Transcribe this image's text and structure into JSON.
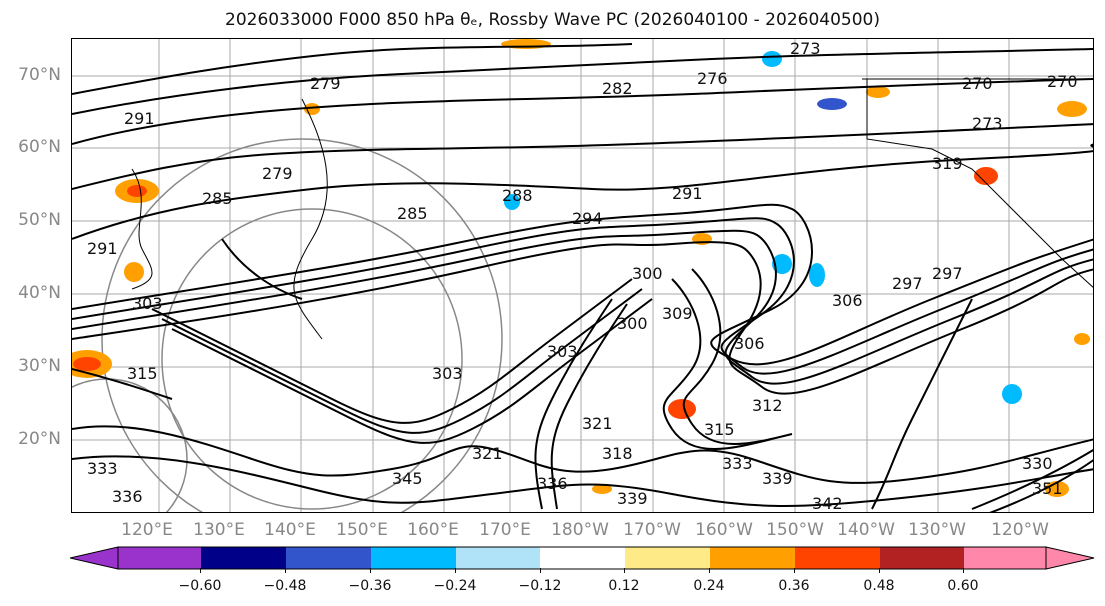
{
  "title": "2026033000 F000 850 hPa θₑ, Rossby Wave PC (2026040100 - 2026040500)",
  "lat_labels": [
    "70°N",
    "60°N",
    "50°N",
    "40°N",
    "30°N",
    "20°N"
  ],
  "lon_labels": [
    "120°E",
    "130°E",
    "140°E",
    "150°E",
    "160°E",
    "170°E",
    "180°W",
    "170°W",
    "160°W",
    "150°W",
    "140°W",
    "130°W",
    "120°W"
  ],
  "colorbar": {
    "tick_labels": [
      "−0.60",
      "−0.48",
      "−0.36",
      "−0.24",
      "−0.12",
      "0.12",
      "0.24",
      "0.36",
      "0.48",
      "0.60"
    ],
    "colors": [
      "#9933cc",
      "#000088",
      "#3355cc",
      "#00bbff",
      "#b0e2f8",
      "#ffffff",
      "#ffea88",
      "#ffa000",
      "#ff4400",
      "#b22222",
      "#ff88aa"
    ]
  },
  "contour_labels": [
    "273",
    "279",
    "291",
    "276",
    "282",
    "270",
    "270",
    "273",
    "279",
    "285",
    "285",
    "288",
    "291",
    "291",
    "294",
    "297",
    "300",
    "303",
    "306",
    "309",
    "306",
    "303",
    "312",
    "315",
    "315",
    "318",
    "321",
    "333",
    "339",
    "336",
    "342",
    "345",
    "321",
    "330",
    "336",
    "339",
    "351",
    "333",
    "319",
    "297",
    "300",
    "303"
  ]
}
